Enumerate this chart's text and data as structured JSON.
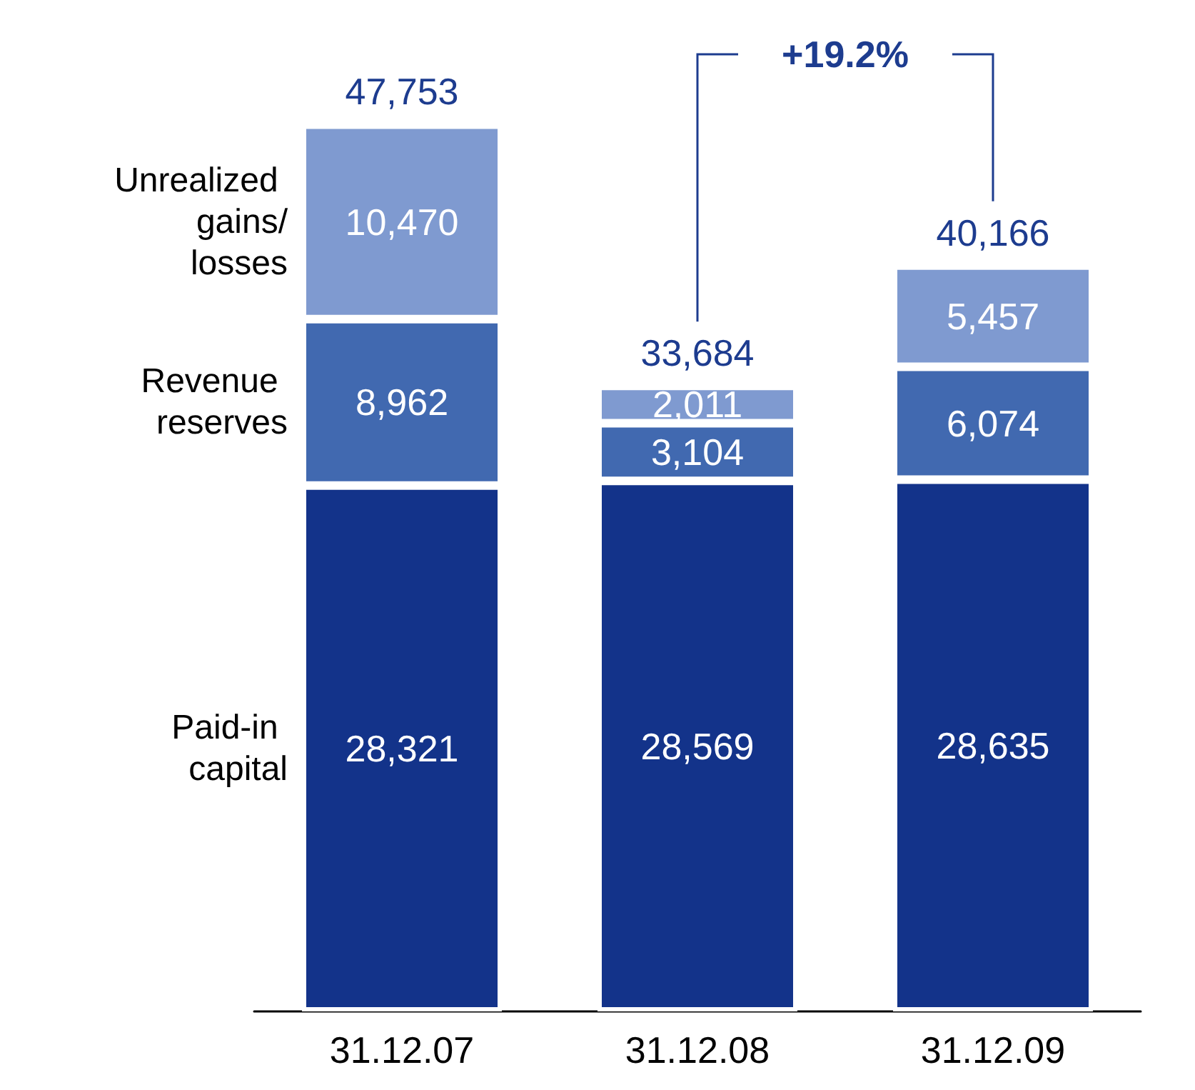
{
  "chart_data": {
    "type": "bar",
    "stacked": true,
    "categories": [
      "31.12.07",
      "31.12.08",
      "31.12.09"
    ],
    "series": [
      {
        "name": "Paid-in capital",
        "color": "#13338a",
        "values": [
          28321,
          28569,
          28635
        ],
        "value_labels": [
          "28,321",
          "28,569",
          "28,635"
        ]
      },
      {
        "name": "Revenue reserves",
        "color": "#4169b0",
        "values": [
          8962,
          3104,
          6074
        ],
        "value_labels": [
          "8,962",
          "3,104",
          "6,074"
        ]
      },
      {
        "name": "Unrealized gains/losses",
        "color": "#7f9ad0",
        "values": [
          10470,
          2011,
          5457
        ],
        "value_labels": [
          "10,470",
          "2,011",
          "5,457"
        ]
      }
    ],
    "totals": [
      "47,753",
      "33,684",
      "40,166"
    ],
    "annotations": [
      "+19.2%"
    ],
    "grid": false,
    "legend": false
  }
}
